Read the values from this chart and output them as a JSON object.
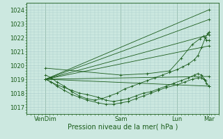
{
  "title": "",
  "xlabel": "Pression niveau de la mer( hPa )",
  "ylabel": "",
  "ylim": [
    1016.5,
    1024.5
  ],
  "xlim": [
    0.0,
    5.1
  ],
  "yticks": [
    1017,
    1018,
    1019,
    1020,
    1021,
    1022,
    1023,
    1024
  ],
  "xtick_positions": [
    0.5,
    2.5,
    4.0,
    4.85
  ],
  "xtick_labels": [
    "VenDim",
    "Sam",
    "Lun",
    "Mar"
  ],
  "bg_color": "#cce8e0",
  "grid_color": "#aacccc",
  "line_color": "#1a5c1a",
  "lines": [
    {
      "x": [
        0.5,
        4.85
      ],
      "y": [
        1019.0,
        1024.0
      ]
    },
    {
      "x": [
        0.5,
        4.85
      ],
      "y": [
        1019.0,
        1023.3
      ]
    },
    {
      "x": [
        0.5,
        4.85
      ],
      "y": [
        1019.0,
        1022.2
      ]
    },
    {
      "x": [
        0.5,
        4.85
      ],
      "y": [
        1019.0,
        1021.4
      ]
    },
    {
      "x": [
        0.5,
        4.85
      ],
      "y": [
        1019.0,
        1019.2
      ]
    },
    {
      "x": [
        0.5,
        4.85
      ],
      "y": [
        1019.0,
        1018.5
      ]
    },
    {
      "x": [
        0.5,
        2.5,
        3.2,
        3.8,
        4.1,
        4.4,
        4.6,
        4.7,
        4.78,
        4.85
      ],
      "y": [
        1019.8,
        1019.3,
        1019.4,
        1019.6,
        1020.5,
        1021.5,
        1021.9,
        1022.1,
        1021.8,
        1021.8
      ]
    },
    {
      "x": [
        0.5,
        0.65,
        0.8,
        1.0,
        1.2,
        1.4,
        1.6,
        1.8,
        2.0,
        2.2,
        2.4,
        2.6,
        2.8,
        3.0,
        3.2,
        3.4,
        3.6,
        3.8,
        4.0,
        4.15,
        4.3,
        4.45,
        4.55,
        4.65,
        4.75,
        4.82,
        4.85
      ],
      "y": [
        1019.3,
        1019.1,
        1018.8,
        1018.5,
        1018.1,
        1017.8,
        1017.6,
        1017.5,
        1017.6,
        1017.8,
        1018.0,
        1018.3,
        1018.5,
        1018.7,
        1018.9,
        1019.1,
        1019.3,
        1019.5,
        1019.7,
        1019.9,
        1020.1,
        1020.4,
        1020.7,
        1021.3,
        1022.0,
        1022.3,
        1022.4
      ]
    },
    {
      "x": [
        0.5,
        0.65,
        0.8,
        1.0,
        1.2,
        1.4,
        1.6,
        1.9,
        2.1,
        2.3,
        2.5,
        2.7,
        2.9,
        3.1,
        3.3,
        3.5,
        3.7,
        3.9,
        4.1,
        4.3,
        4.45,
        4.55,
        4.65,
        4.72,
        4.78,
        4.85
      ],
      "y": [
        1019.0,
        1018.8,
        1018.6,
        1018.4,
        1018.2,
        1018.0,
        1017.9,
        1017.7,
        1017.5,
        1017.4,
        1017.5,
        1017.6,
        1017.8,
        1018.0,
        1018.1,
        1018.3,
        1018.5,
        1018.7,
        1018.9,
        1019.1,
        1019.3,
        1019.4,
        1019.3,
        1019.0,
        1018.7,
        1018.5
      ]
    },
    {
      "x": [
        0.5,
        0.65,
        0.8,
        1.0,
        1.2,
        1.4,
        1.6,
        1.9,
        2.1,
        2.3,
        2.5,
        2.7,
        2.9,
        3.1,
        3.3,
        3.5,
        3.7,
        4.0,
        4.2,
        4.4,
        4.55,
        4.65,
        4.75
      ],
      "y": [
        1019.0,
        1018.8,
        1018.5,
        1018.2,
        1017.9,
        1017.7,
        1017.5,
        1017.3,
        1017.2,
        1017.2,
        1017.3,
        1017.4,
        1017.6,
        1017.8,
        1018.0,
        1018.2,
        1018.4,
        1018.6,
        1018.8,
        1019.0,
        1019.1,
        1019.1,
        1018.9
      ]
    }
  ],
  "vline_positions": [
    0.5,
    2.5,
    4.0,
    4.85
  ],
  "marker": "+"
}
